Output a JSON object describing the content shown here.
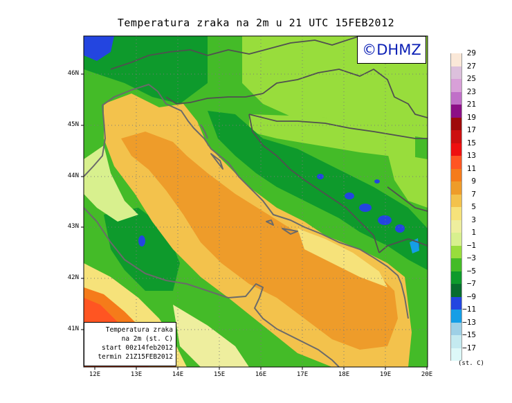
{
  "title": "Temperatura zraka na 2m u 21 UTC 15FEB2012",
  "logo": "©DHMZ",
  "info": {
    "line1": "Temperatura zraka",
    "line2": "na 2m (st. C)",
    "line3": "start 00z14feb2012",
    "line4": "termin 21Z15FEB2012"
  },
  "axes": {
    "lat_labels": [
      "46N",
      "45N",
      "44N",
      "43N",
      "42N",
      "41N"
    ],
    "lon_labels": [
      "12E",
      "13E",
      "14E",
      "15E",
      "16E",
      "17E",
      "18E",
      "19E",
      "20E"
    ]
  },
  "legend": {
    "units": "(st. C)",
    "labels": [
      "29",
      "27",
      "25",
      "23",
      "21",
      "19",
      "17",
      "15",
      "13",
      "11",
      "9",
      "7",
      "5",
      "3",
      "1",
      "−1",
      "−3",
      "−5",
      "−7",
      "−9",
      "−11",
      "−13",
      "−15",
      "−17"
    ],
    "colors": [
      "#fae8d8",
      "#dcc0dc",
      "#d8a0d8",
      "#c070c8",
      "#8c0f86",
      "#9e0a0a",
      "#cc1010",
      "#ee1010",
      "#ff5522",
      "#f57b1a",
      "#ee9c2a",
      "#f3c24c",
      "#f6e27a",
      "#eeee9e",
      "#d8f08e",
      "#98dd3c",
      "#44bb28",
      "#0e9a2c",
      "#086c2e",
      "#2345e0",
      "#159ee6",
      "#9ed0e6",
      "#c4eaf0",
      "#ddf8f8"
    ]
  },
  "colors": {
    "land_cold": "#44bb28",
    "land_mild": "#98dd3c",
    "sea_warm": "#ee9c2a",
    "coast": "#6a6a6a",
    "border": "#505050"
  }
}
